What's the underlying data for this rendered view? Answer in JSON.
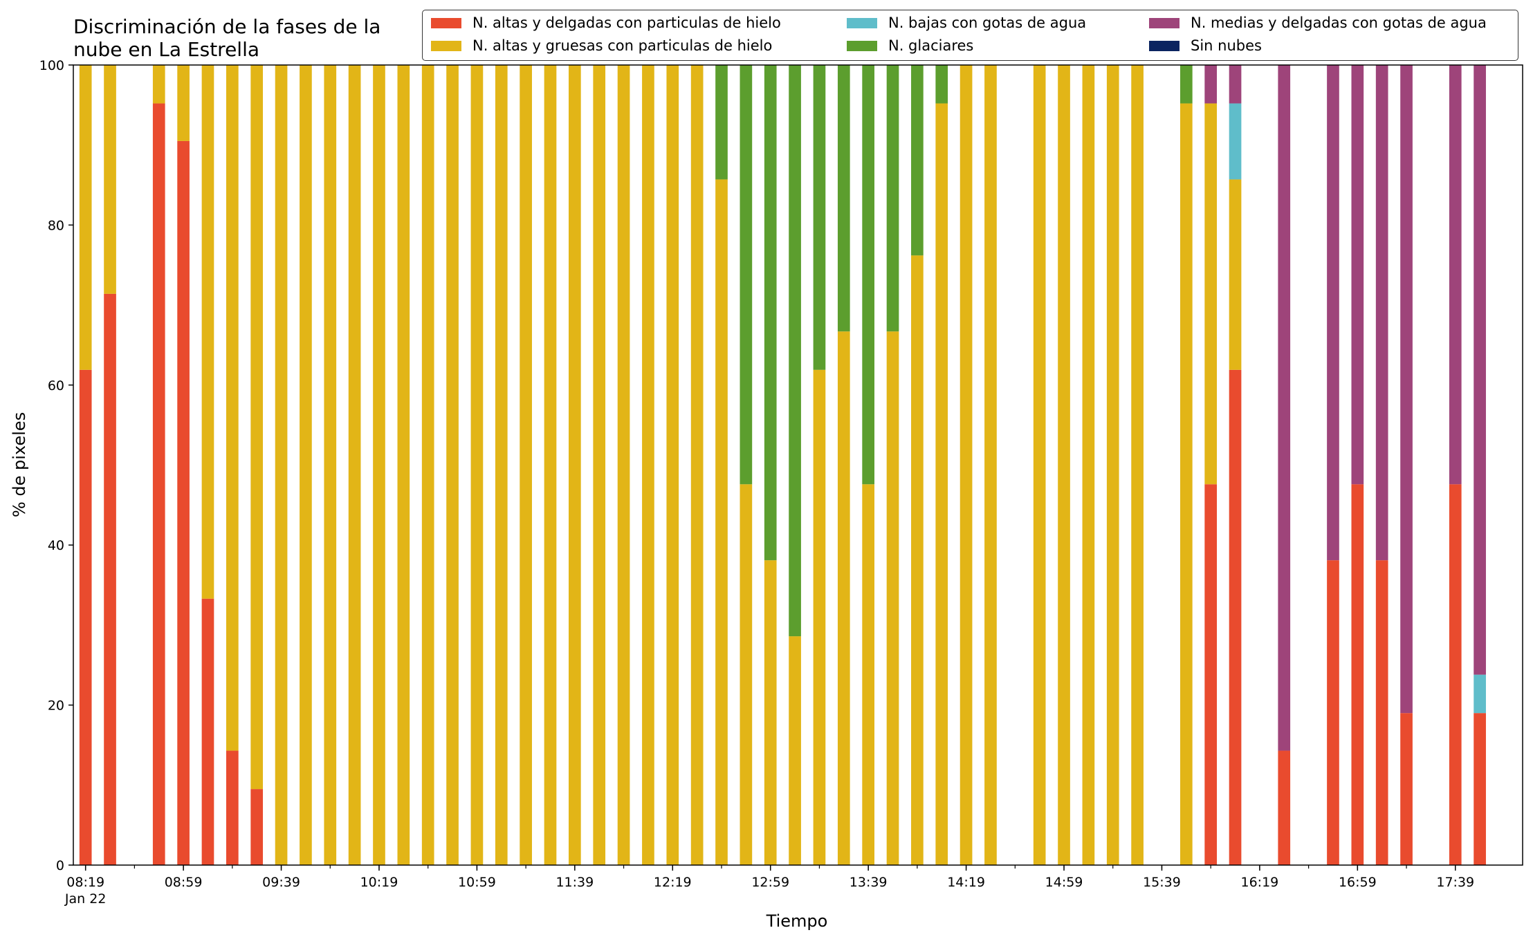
{
  "title": "Discriminación de la fases de la\nnube en La Estrella",
  "legend": [
    {
      "key": "thin_ice",
      "label": "N. altas y delgadas con particulas de hielo",
      "color": "#e94b2e"
    },
    {
      "key": "thick_ice",
      "label": "N. altas y gruesas con particulas de hielo",
      "color": "#e2b517"
    },
    {
      "key": "low_water",
      "label": "N. bajas con gotas de agua",
      "color": "#5fbdca"
    },
    {
      "key": "glacial",
      "label": "N. glaciares",
      "color": "#5c9e2e"
    },
    {
      "key": "mid_water",
      "label": "N. medias y delgadas con gotas de agua",
      "color": "#9e447a"
    },
    {
      "key": "clear",
      "label": "Sin nubes",
      "color": "#0b2460"
    }
  ],
  "chart_data": {
    "type": "bar",
    "stacked": true,
    "xlabel": "Tiempo",
    "ylabel": "% de pixeles",
    "ylim": [
      0,
      100
    ],
    "yticks": [
      0,
      20,
      40,
      60,
      80,
      100
    ],
    "x_tick_labels": [
      "08:19\nJan 22",
      "08:59",
      "09:39",
      "10:19",
      "10:59",
      "11:39",
      "12:19",
      "12:59",
      "13:39",
      "14:19",
      "14:59",
      "15:39",
      "16:19",
      "16:59",
      "17:39"
    ],
    "categories": [
      "08:19",
      "08:29",
      "08:39",
      "08:49",
      "08:59",
      "09:09",
      "09:19",
      "09:29",
      "09:39",
      "09:49",
      "09:59",
      "10:09",
      "10:19",
      "10:29",
      "10:39",
      "10:49",
      "10:59",
      "11:09",
      "11:19",
      "11:29",
      "11:39",
      "11:49",
      "11:59",
      "12:09",
      "12:19",
      "12:29",
      "12:39",
      "12:49",
      "12:59",
      "13:09",
      "13:19",
      "13:29",
      "13:39",
      "13:49",
      "13:59",
      "14:09",
      "14:19",
      "14:29",
      "14:39",
      "14:49",
      "14:59",
      "15:09",
      "15:19",
      "15:29",
      "15:39",
      "15:49",
      "15:59",
      "16:09",
      "16:19",
      "16:29",
      "16:39",
      "16:49",
      "16:59",
      "17:09",
      "17:19",
      "17:29",
      "17:39",
      "17:49"
    ],
    "series": [
      {
        "name": "N. altas y delgadas con particulas de hielo",
        "values": [
          61.9,
          71.4,
          0,
          95.2,
          90.5,
          33.3,
          14.3,
          9.5,
          0,
          0,
          0,
          0,
          0,
          0,
          0,
          0,
          0,
          0,
          0,
          0,
          0,
          0,
          0,
          0,
          0,
          0,
          0,
          0,
          0,
          0,
          0,
          0,
          0,
          0,
          0,
          0,
          0,
          0,
          0,
          0,
          0,
          0,
          0,
          0,
          0,
          0,
          47.6,
          61.9,
          0,
          14.3,
          0,
          38.1,
          47.6,
          38.1,
          19.0,
          0,
          47.6,
          19.0
        ]
      },
      {
        "name": "N. altas y gruesas con particulas de hielo",
        "values": [
          38.1,
          28.6,
          0,
          4.8,
          9.5,
          66.7,
          85.7,
          90.5,
          100,
          100,
          100,
          100,
          100,
          100,
          100,
          100,
          100,
          100,
          100,
          100,
          100,
          100,
          100,
          100,
          100,
          100,
          85.7,
          47.6,
          38.1,
          28.6,
          61.9,
          66.7,
          47.6,
          66.7,
          76.2,
          95.2,
          100,
          100,
          0,
          100,
          100,
          100,
          100,
          100,
          0,
          95.2,
          47.6,
          23.8,
          0,
          0,
          0,
          0,
          0,
          0,
          0,
          0,
          0,
          0
        ]
      },
      {
        "name": "N. bajas con gotas de agua",
        "values": [
          0,
          0,
          0,
          0,
          0,
          0,
          0,
          0,
          0,
          0,
          0,
          0,
          0,
          0,
          0,
          0,
          0,
          0,
          0,
          0,
          0,
          0,
          0,
          0,
          0,
          0,
          0,
          0,
          0,
          0,
          0,
          0,
          0,
          0,
          0,
          0,
          0,
          0,
          0,
          0,
          0,
          0,
          0,
          0,
          0,
          0,
          0,
          9.5,
          0,
          0,
          0,
          0,
          0,
          0,
          0,
          0,
          0,
          4.8
        ]
      },
      {
        "name": "N. glaciares",
        "values": [
          0,
          0,
          0,
          0,
          0,
          0,
          0,
          0,
          0,
          0,
          0,
          0,
          0,
          0,
          0,
          0,
          0,
          0,
          0,
          0,
          0,
          0,
          0,
          0,
          0,
          0,
          14.3,
          52.4,
          61.9,
          71.4,
          38.1,
          33.3,
          52.4,
          33.3,
          23.8,
          4.8,
          0,
          0,
          0,
          0,
          0,
          0,
          0,
          0,
          0,
          4.8,
          0,
          0,
          0,
          0,
          0,
          0,
          0,
          0,
          0,
          0,
          0,
          0
        ]
      },
      {
        "name": "N. medias y delgadas con gotas de agua",
        "values": [
          0,
          0,
          0,
          0,
          0,
          0,
          0,
          0,
          0,
          0,
          0,
          0,
          0,
          0,
          0,
          0,
          0,
          0,
          0,
          0,
          0,
          0,
          0,
          0,
          0,
          0,
          0,
          0,
          0,
          0,
          0,
          0,
          0,
          0,
          0,
          0,
          0,
          0,
          0,
          0,
          0,
          0,
          0,
          0,
          0,
          0,
          4.8,
          4.8,
          0,
          85.7,
          0,
          61.9,
          52.4,
          61.9,
          81.0,
          0,
          52.4,
          76.2
        ]
      },
      {
        "name": "Sin nubes",
        "values": [
          0,
          0,
          0,
          0,
          0,
          0,
          0,
          0,
          0,
          0,
          0,
          0,
          0,
          0,
          0,
          0,
          0,
          0,
          0,
          0,
          0,
          0,
          0,
          0,
          0,
          0,
          0,
          0,
          0,
          0,
          0,
          0,
          0,
          0,
          0,
          0,
          0,
          0,
          0,
          0,
          0,
          0,
          0,
          0,
          0,
          0,
          0,
          0,
          0,
          0,
          0,
          0,
          0,
          0,
          0,
          0,
          0,
          0
        ]
      }
    ],
    "grid": false,
    "legend_position": "top"
  }
}
